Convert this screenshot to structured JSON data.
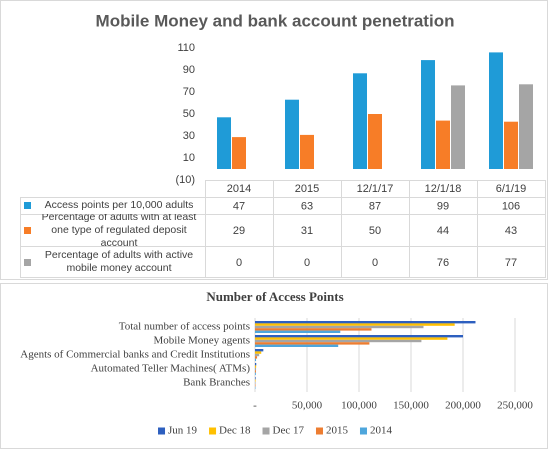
{
  "chart_data": [
    {
      "type": "bar",
      "title": "Mobile Money and bank account penetration",
      "data_table": true,
      "categories": [
        "2014",
        "2015",
        "12/1/17",
        "12/1/18",
        "6/1/19"
      ],
      "series": [
        {
          "name": "Access points per 10,000 adults",
          "color": "#1f9bd7",
          "values": [
            47,
            63,
            87,
            99,
            106
          ]
        },
        {
          "name": "Percentage of adults with at least one type of regulated deposit account",
          "color": "#f77d27",
          "values": [
            29,
            31,
            50,
            44,
            43
          ]
        },
        {
          "name": "Percentage of adults with active mobile money account",
          "color": "#a5a5a5",
          "values": [
            0,
            0,
            0,
            76,
            77
          ]
        }
      ],
      "ylim": [
        -10,
        110
      ],
      "yticks": [
        {
          "value": -10,
          "label": "(10)"
        },
        10,
        30,
        50,
        70,
        90,
        110
      ]
    },
    {
      "type": "bar",
      "orientation": "horizontal",
      "title": "Number of Access Points",
      "legend": "bottom",
      "grid": true,
      "categories": [
        "Total number of access points",
        "Mobile Money agents",
        "Agents of Commercial banks and Credit Institutions",
        "Automated Teller Machines( ATMs)",
        "Bank Branches"
      ],
      "series": [
        {
          "name": "Jun 19",
          "color": "#2d5fbf",
          "values": [
            212000,
            200000,
            8000,
            1200,
            600
          ]
        },
        {
          "name": "Dec 18",
          "color": "#ffc000",
          "values": [
            192000,
            185000,
            6000,
            1100,
            550
          ]
        },
        {
          "name": "Dec 17",
          "color": "#a5a5a5",
          "values": [
            162000,
            160000,
            4000,
            1000,
            500
          ]
        },
        {
          "name": "2015",
          "color": "#ed7d31",
          "values": [
            112000,
            110000,
            2000,
            900,
            450
          ]
        },
        {
          "name": "2014",
          "color": "#4ea6dc",
          "values": [
            82000,
            80000,
            1000,
            800,
            400
          ]
        }
      ],
      "xlim": [
        0,
        250000
      ],
      "xticks": [
        {
          "value": 0,
          "label": "-"
        },
        {
          "value": 50000,
          "label": "50,000"
        },
        {
          "value": 100000,
          "label": "100,000"
        },
        {
          "value": 150000,
          "label": "150,000"
        },
        {
          "value": 200000,
          "label": "200,000"
        },
        {
          "value": 250000,
          "label": "250,000"
        }
      ]
    }
  ]
}
